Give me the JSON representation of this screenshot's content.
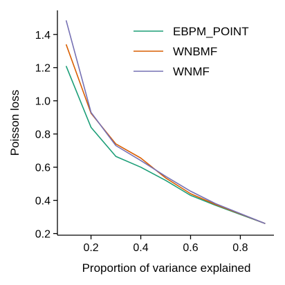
{
  "chart_data": {
    "type": "line",
    "title": "",
    "xlabel": "Proportion of variance explained",
    "ylabel": "Poisson loss",
    "xlim": [
      0.065,
      0.935
    ],
    "ylim": [
      0.19,
      1.545
    ],
    "xticks": [
      0.2,
      0.4,
      0.6,
      0.8
    ],
    "xtick_labels": [
      "0.2",
      "0.4",
      "0.6",
      "0.8"
    ],
    "yticks": [
      0.2,
      0.4,
      0.6,
      0.8,
      1.0,
      1.2,
      1.4
    ],
    "ytick_labels": [
      "0.2",
      "0.4",
      "0.6",
      "0.8",
      "1.0",
      "1.2",
      "1.4"
    ],
    "grid": false,
    "legend_position": "top-right",
    "x": [
      0.1,
      0.2,
      0.3,
      0.4,
      0.5,
      0.6,
      0.7,
      0.8,
      0.9
    ],
    "series": [
      {
        "name": "EBPM_POINT",
        "color": "#1b9e77",
        "values": [
          1.21,
          0.84,
          0.665,
          0.6,
          0.52,
          0.43,
          0.37,
          0.315,
          0.26
        ]
      },
      {
        "name": "WNBMF",
        "color": "#d95f02",
        "values": [
          1.34,
          0.925,
          0.74,
          0.655,
          0.535,
          0.44,
          0.375,
          0.318,
          0.26
        ]
      },
      {
        "name": "WNMF",
        "color": "#7570b3",
        "values": [
          1.485,
          0.93,
          0.73,
          0.64,
          0.545,
          0.455,
          0.38,
          0.32,
          0.26
        ]
      }
    ]
  }
}
